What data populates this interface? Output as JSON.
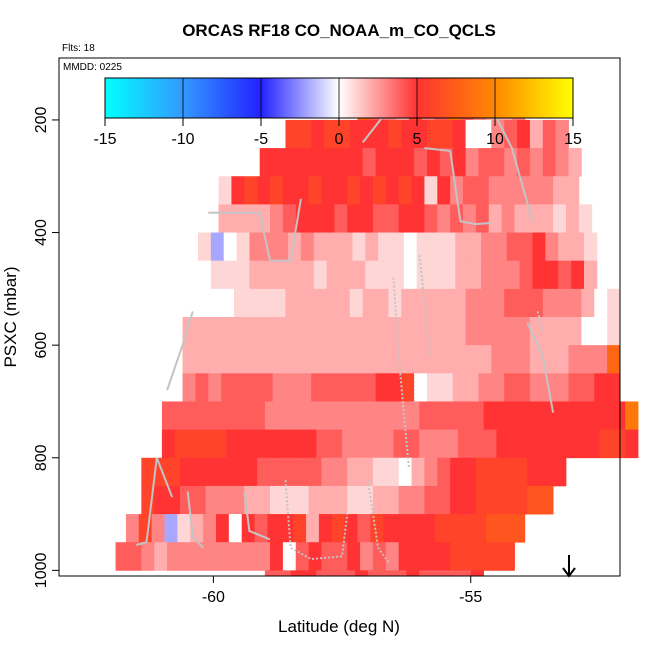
{
  "chart_data": {
    "type": "heatmap",
    "title": "ORCAS RF18 CO_NOAA_m_CO_QCLS",
    "flights_label": "Flts: 18",
    "date_label": "MMDD: 0225",
    "xlabel": "Latitude (deg N)",
    "ylabel": "PSXC (mbar)",
    "xlim": [
      -63,
      -52.1
    ],
    "ylim_reversed": [
      1010,
      90
    ],
    "x_ticks": [
      -60,
      -55
    ],
    "y_ticks": [
      200,
      400,
      600,
      800,
      1000
    ],
    "colorbar": {
      "range": [
        -15,
        15
      ],
      "ticks": [
        -15,
        -10,
        -5,
        0,
        5,
        10,
        15
      ],
      "colors": [
        "#00ffff",
        "#3399ff",
        "#2222ff",
        "#ffffff",
        "#ff3333",
        "#ff8800",
        "#ffff00"
      ]
    },
    "bin_width_deg": 0.25,
    "bin_depth_mbar": 50,
    "rows": [
      {
        "p": 175,
        "x0": -57.2,
        "v": [
          8,
          4,
          3,
          2,
          6,
          3,
          4,
          9,
          4,
          3,
          2,
          2,
          3
        ]
      },
      {
        "p": 225,
        "x0": -58.6,
        "v": [
          6,
          6,
          5,
          6,
          6,
          5,
          5,
          5,
          6,
          5,
          5,
          6,
          6,
          5,
          0,
          0,
          3,
          4,
          5,
          2,
          4,
          3
        ]
      },
      {
        "p": 275,
        "x0": -59.1,
        "v": [
          5,
          5,
          5,
          5,
          5,
          5,
          5,
          5,
          4,
          5,
          5,
          5,
          4,
          5,
          4,
          5,
          3,
          4,
          4,
          3,
          4,
          3,
          4,
          3,
          2
        ]
      },
      {
        "p": 325,
        "x0": -59.9,
        "v": [
          1,
          5,
          6,
          5,
          6,
          5,
          5,
          6,
          5,
          5,
          6,
          5,
          6,
          5,
          6,
          5,
          1,
          5,
          3,
          4,
          4,
          3,
          3,
          3,
          3,
          3,
          2,
          2
        ]
      },
      {
        "p": 375,
        "x0": -59.9,
        "v": [
          2,
          2,
          2,
          2,
          3,
          4,
          5,
          5,
          5,
          4,
          5,
          5,
          4,
          4,
          5,
          5,
          4,
          3,
          4,
          3,
          4,
          2,
          3,
          2,
          2,
          2,
          1,
          2,
          1
        ]
      },
      {
        "p": 425,
        "x0": -60.3,
        "v": [
          1,
          -2,
          0,
          1,
          3,
          3,
          3,
          2,
          3,
          2,
          2,
          2,
          1,
          2,
          1,
          1,
          0,
          1,
          1,
          1,
          2,
          2,
          3,
          3,
          4,
          4,
          5,
          3,
          2,
          2,
          1
        ]
      },
      {
        "p": 475,
        "x0": -60.3,
        "v": [
          0,
          1,
          1,
          1,
          2,
          2,
          2,
          2,
          2,
          1,
          2,
          2,
          2,
          1,
          1,
          1,
          0,
          1,
          1,
          1,
          2,
          2,
          3,
          3,
          3,
          4,
          5,
          5,
          4,
          5,
          2
        ]
      },
      {
        "p": 525,
        "x0": -60.6,
        "v": [
          0,
          0,
          0,
          0,
          1,
          1,
          1,
          1,
          2,
          2,
          2,
          2,
          2,
          1,
          2,
          2,
          1,
          2,
          2,
          2,
          2,
          2,
          3,
          3,
          3,
          4,
          4,
          4,
          3,
          3,
          3,
          2,
          0,
          1
        ]
      },
      {
        "p": 575,
        "x0": -60.6,
        "v": [
          2,
          2,
          2,
          2,
          2,
          2,
          2,
          2,
          2,
          2,
          2,
          2,
          2,
          2,
          2,
          2,
          2,
          2,
          2,
          2,
          2,
          2,
          3,
          3,
          3,
          3,
          3,
          2,
          2,
          2,
          2,
          0,
          0,
          1
        ]
      },
      {
        "p": 625,
        "x0": -60.6,
        "v": [
          2,
          2,
          2,
          2,
          2,
          2,
          2,
          2,
          2,
          2,
          2,
          2,
          2,
          2,
          2,
          2,
          2,
          2,
          2,
          2,
          2,
          2,
          2,
          2,
          3,
          3,
          3,
          2,
          2,
          2,
          3,
          3,
          3,
          8
        ]
      },
      {
        "p": 675,
        "x0": -60.6,
        "v": [
          3,
          4,
          3,
          4,
          4,
          4,
          4,
          3,
          3,
          3,
          4,
          4,
          4,
          4,
          4,
          5,
          5,
          6,
          0,
          1,
          1,
          2,
          2,
          3,
          3,
          4,
          4,
          3,
          3,
          3,
          4,
          4,
          5,
          5
        ]
      },
      {
        "p": 725,
        "x0": -61.0,
        "v": [
          4,
          4,
          4,
          4,
          4,
          4,
          4,
          4,
          3,
          3,
          3,
          3,
          3,
          3,
          3,
          3,
          3,
          3,
          3,
          3,
          4,
          4,
          4,
          4,
          4,
          5,
          5,
          5,
          5,
          5,
          5,
          5,
          5,
          5,
          5,
          5,
          9
        ]
      },
      {
        "p": 775,
        "x0": -61.0,
        "v": [
          5,
          6,
          6,
          6,
          6,
          5,
          5,
          5,
          5,
          5,
          5,
          5,
          4,
          4,
          3,
          3,
          3,
          3,
          4,
          4,
          3,
          3,
          3,
          4,
          4,
          4,
          5,
          5,
          5,
          5,
          5,
          5,
          5,
          5,
          6,
          6,
          5
        ]
      },
      {
        "p": 825,
        "x0": -61.4,
        "v": [
          6,
          6,
          6,
          5,
          5,
          5,
          5,
          5,
          5,
          4,
          4,
          4,
          4,
          4,
          3,
          3,
          2,
          2,
          1,
          1,
          0,
          2,
          3,
          4,
          5,
          5,
          6,
          6,
          6,
          6,
          5,
          5,
          5
        ]
      },
      {
        "p": 875,
        "x0": -61.4,
        "v": [
          6,
          5,
          5,
          4,
          4,
          3,
          3,
          3,
          2,
          2,
          1,
          1,
          1,
          2,
          2,
          2,
          1,
          1,
          2,
          2,
          3,
          3,
          4,
          4,
          5,
          5,
          6,
          6,
          6,
          6,
          7,
          7
        ]
      },
      {
        "p": 925,
        "x0": -61.7,
        "v": [
          3,
          6,
          3,
          -2,
          1,
          2,
          3,
          5,
          0,
          5,
          4,
          5,
          5,
          6,
          2,
          5,
          6,
          5,
          4,
          6,
          5,
          5,
          5,
          5,
          6,
          6,
          6,
          6,
          7,
          7,
          7
        ]
      },
      {
        "p": 975,
        "x0": -61.9,
        "v": [
          4,
          4,
          3,
          2,
          3,
          3,
          3,
          3,
          3,
          3,
          3,
          3,
          5,
          0,
          4,
          5,
          4,
          4,
          5,
          3,
          4,
          3,
          5,
          5,
          5,
          5,
          6,
          6,
          6,
          6,
          6
        ]
      },
      {
        "p": 1025,
        "x0": -59.0,
        "v": [
          4,
          4,
          5,
          5,
          4,
          4,
          4,
          5,
          4,
          4,
          4,
          5,
          4,
          4,
          4,
          4,
          5
        ]
      }
    ]
  }
}
